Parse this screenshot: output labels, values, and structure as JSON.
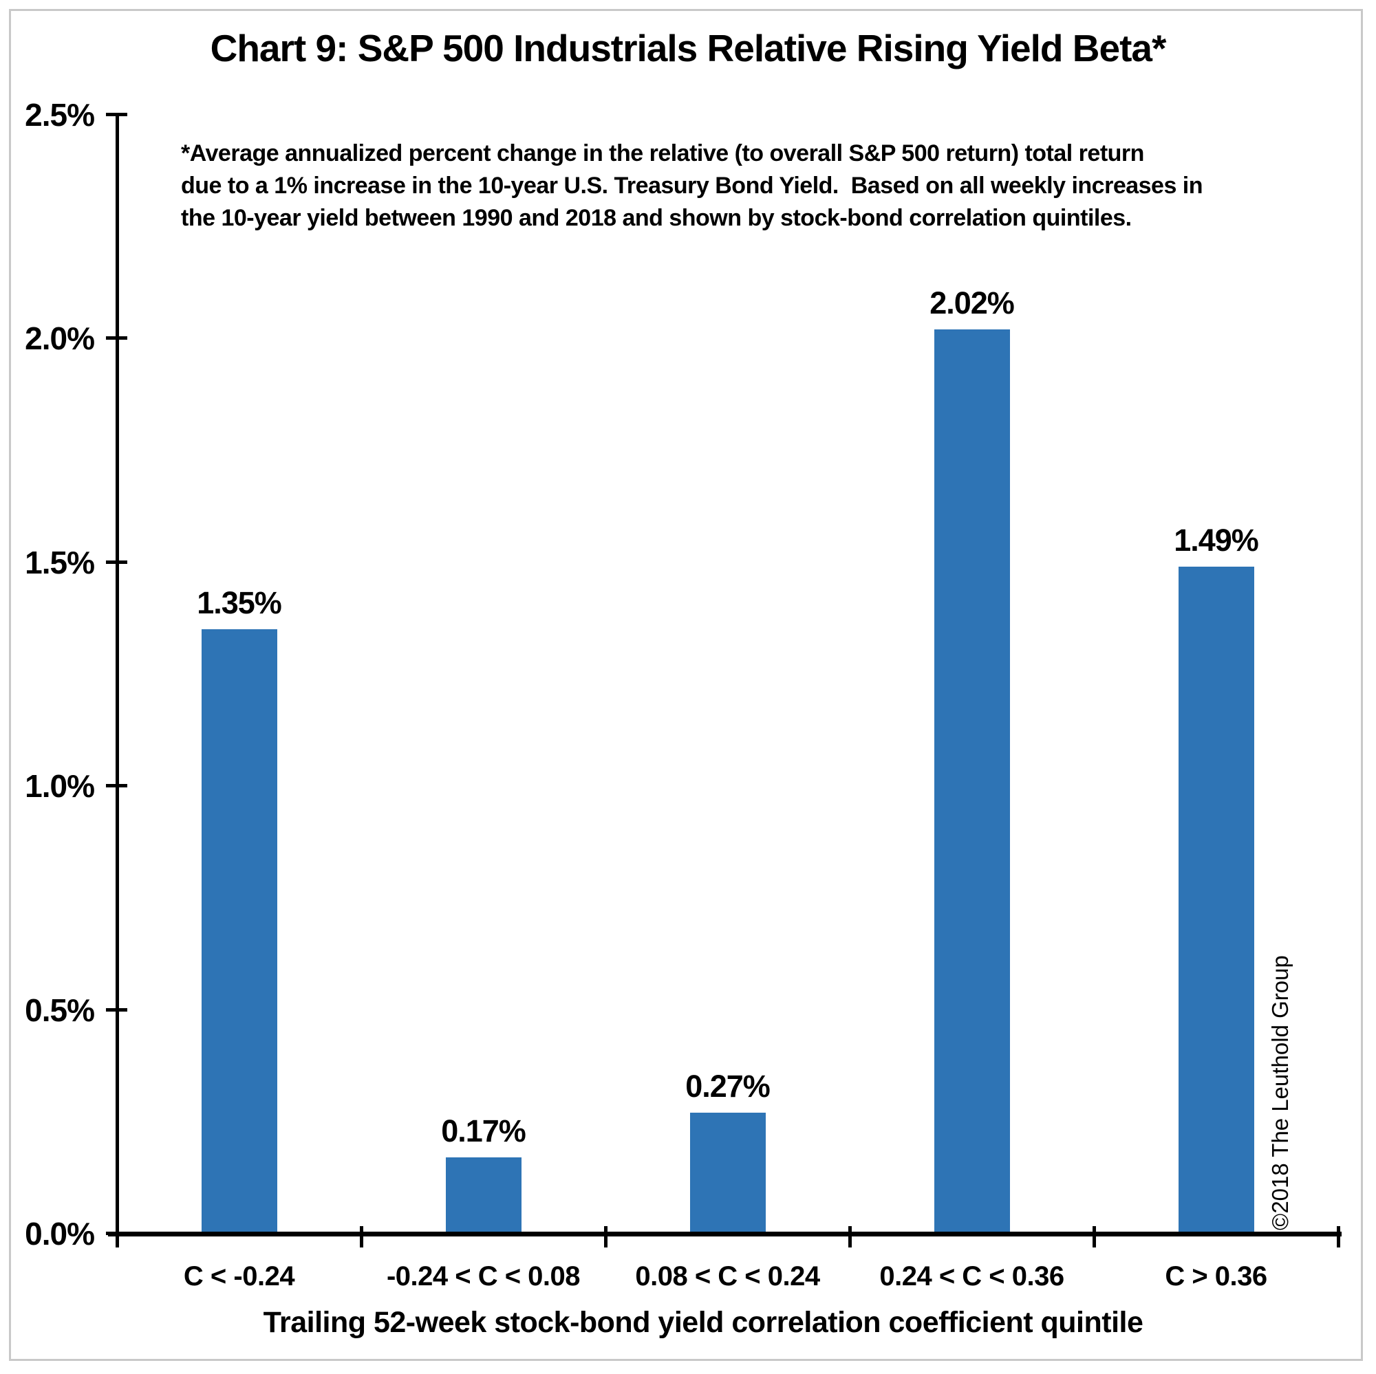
{
  "figure": {
    "copyright": "©2018 The Leuthold Group",
    "border_color": "#c9c9c9",
    "background_color": "#ffffff"
  },
  "chart_data": {
    "type": "bar",
    "title": "Chart 9: S&P 500 Industrials Relative Rising Yield Beta*",
    "footnote": "*Average annualized percent change in the relative (to overall S&P 500 return) total return\ndue to a 1% increase in the 10-year U.S. Treasury Bond Yield.  Based on all weekly increases in\nthe 10-year yield between 1990 and 2018 and shown by stock-bond correlation quintiles.",
    "categories": [
      "C < -0.24",
      "-0.24 < C < 0.08",
      "0.08 < C < 0.24",
      "0.24 < C < 0.36",
      "C > 0.36"
    ],
    "values": [
      1.35,
      0.17,
      0.27,
      2.02,
      1.49
    ],
    "data_labels": [
      "1.35%",
      "0.17%",
      "0.27%",
      "2.02%",
      "1.49%"
    ],
    "xlabel": "Trailing 52-week stock-bond yield correlation coefficient quintile",
    "ylabel": "",
    "ylim": [
      0,
      2.5
    ],
    "ytick_values": [
      0,
      0.5,
      1.0,
      1.5,
      2.0,
      2.5
    ],
    "ytick_labels": [
      "0.0%",
      "0.5%",
      "1.0%",
      "1.5%",
      "2.0%",
      "2.5%"
    ],
    "grid": false,
    "legend": null,
    "bar_color": "#2e74b5",
    "axis_color": "#000000",
    "text_color": "#000000"
  }
}
